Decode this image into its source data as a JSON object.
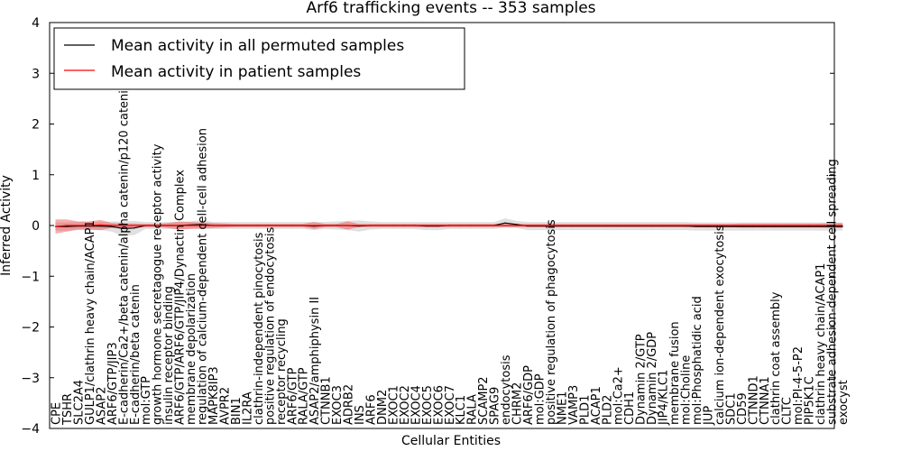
{
  "chart_data": {
    "type": "line",
    "title": "Arf6 trafficking events -- 353 samples",
    "xlabel": "Cellular Entities",
    "ylabel": "Inferred Activity",
    "ylim": [
      -4,
      4
    ],
    "yticks": [
      -4,
      -3,
      -2,
      -1,
      0,
      1,
      2,
      3,
      4
    ],
    "ytick_labels": [
      "−4",
      "−3",
      "−2",
      "−1",
      "0",
      "1",
      "2",
      "3",
      "4"
    ],
    "legend_position": "top-left",
    "legend": [
      {
        "label": "Mean activity in all permuted samples",
        "color": "#000000"
      },
      {
        "label": "Mean activity in patient samples",
        "color": "#ff0000"
      }
    ],
    "categories": [
      "CPE",
      "TSHR",
      "SLC2A4",
      "GULP1/clathrin heavy chain/ACAP1",
      "ASAP2",
      "ARF6/GTP/JIP3",
      "E-cadherin/Ca2+/beta catenin/alpha catenin/p120 catenin",
      "E-cadherin/beta catenin",
      "mol:GTP",
      "growth hormone secretagogue receptor activity",
      "insulin receptor binding",
      "ARF6/GTP/ARF6/GTP/JIP4/Dynactin Complex",
      "membrane depolarization",
      "regulation of calcium-dependent cell-cell adhesion",
      "MAPK8IP3",
      "AVPR2",
      "BIN1",
      "IL2RA",
      "clathrin-independent pinocytosis",
      "positive regulation of endocytosis",
      "receptor recycling",
      "ARF6/GTP",
      "RALA/GTP",
      "ASAP2/amphiphysin II",
      "CTNNB1",
      "EXOC3",
      "ADRB2",
      "INS",
      "ARF6",
      "DNM2",
      "EXOC1",
      "EXOC2",
      "EXOC4",
      "EXOC5",
      "EXOC6",
      "EXOC7",
      "KLC1",
      "RALA",
      "SCAMP2",
      "SPAG9",
      "endocytosis",
      "CHRM2",
      "ARF6/GDP",
      "mol:GDP",
      "positive regulation of phagocytosis",
      "NME1",
      "VAMP3",
      "PLD1",
      "ACAP1",
      "PLD2",
      "mol:Ca2+",
      "CDH1",
      "Dynamin 2/GTP",
      "Dynamin 2/GDP",
      "JIP4/KLC1",
      "membrane fusion",
      "mol:Choline",
      "mol:Phosphatidic acid",
      "JUP",
      "calcium ion-dependent exocytosis",
      "SDC1",
      "CD59",
      "CTNND1",
      "CTNNA1",
      "clathrin coat assembly",
      "CLTC",
      "mol:PI-4-5-P2",
      "PIP5K1C",
      "clathrin heavy chain/ACAP1",
      "substrate adhesion-dependent cell spreading",
      "exocyst"
    ],
    "series": [
      {
        "name": "Mean activity in all permuted samples",
        "color": "#000000",
        "values": [
          -0.02,
          -0.02,
          -0.01,
          -0.01,
          -0.01,
          -0.02,
          -0.06,
          -0.05,
          0.0,
          0.0,
          0.0,
          0.0,
          0.01,
          0.02,
          0.0,
          0.0,
          0.0,
          0.0,
          0.0,
          0.0,
          0.0,
          0.0,
          0.0,
          -0.01,
          0.0,
          0.0,
          0.0,
          -0.01,
          0.0,
          0.0,
          0.0,
          0.0,
          0.0,
          -0.01,
          -0.01,
          0.0,
          0.0,
          0.0,
          0.0,
          0.0,
          0.05,
          0.02,
          -0.01,
          -0.01,
          -0.01,
          -0.01,
          -0.01,
          -0.01,
          -0.01,
          -0.01,
          -0.01,
          -0.01,
          -0.01,
          -0.01,
          -0.01,
          -0.01,
          -0.01,
          -0.02,
          -0.02,
          -0.02,
          -0.02,
          -0.02,
          -0.02,
          -0.02,
          -0.02,
          -0.02,
          -0.02,
          -0.02,
          -0.02,
          -0.02,
          -0.02
        ],
        "spread": [
          0.08,
          0.08,
          0.08,
          0.08,
          0.08,
          0.1,
          0.14,
          0.14,
          0.07,
          0.07,
          0.07,
          0.07,
          0.07,
          0.09,
          0.07,
          0.07,
          0.07,
          0.07,
          0.07,
          0.07,
          0.07,
          0.07,
          0.07,
          0.08,
          0.07,
          0.08,
          0.09,
          0.11,
          0.08,
          0.07,
          0.07,
          0.07,
          0.07,
          0.08,
          0.08,
          0.07,
          0.07,
          0.07,
          0.07,
          0.07,
          0.09,
          0.07,
          0.08,
          0.08,
          0.08,
          0.08,
          0.08,
          0.08,
          0.08,
          0.08,
          0.08,
          0.08,
          0.08,
          0.08,
          0.08,
          0.08,
          0.08,
          0.08,
          0.08,
          0.08,
          0.08,
          0.08,
          0.08,
          0.08,
          0.08,
          0.08,
          0.08,
          0.08,
          0.08,
          0.08,
          0.08
        ]
      },
      {
        "name": "Mean activity in patient samples",
        "color": "#ff0000",
        "values": [
          -0.02,
          0.0,
          0.0,
          0.0,
          0.01,
          0.0,
          0.0,
          0.0,
          0.0,
          0.0,
          0.0,
          0.0,
          0.0,
          0.0,
          0.0,
          0.0,
          0.0,
          0.0,
          0.0,
          0.0,
          0.0,
          0.0,
          0.0,
          0.0,
          0.0,
          0.0,
          0.0,
          0.0,
          0.0,
          0.0,
          0.0,
          0.0,
          0.0,
          0.0,
          0.0,
          0.0,
          0.0,
          0.0,
          0.0,
          0.0,
          0.0,
          0.0,
          0.0,
          0.0,
          0.0,
          0.0,
          0.0,
          0.0,
          0.0,
          0.0,
          0.0,
          0.0,
          0.0,
          0.0,
          0.0,
          0.0,
          0.0,
          0.0,
          0.0,
          0.0,
          0.0,
          0.0,
          0.0,
          0.0,
          0.0,
          0.0,
          0.0,
          0.0,
          0.0,
          0.0,
          0.0
        ],
        "spread": [
          0.14,
          0.12,
          0.08,
          0.08,
          0.1,
          0.05,
          0.04,
          0.04,
          0.03,
          0.03,
          0.05,
          0.08,
          0.07,
          0.06,
          0.05,
          0.04,
          0.03,
          0.03,
          0.03,
          0.03,
          0.03,
          0.03,
          0.03,
          0.07,
          0.03,
          0.03,
          0.08,
          0.03,
          0.03,
          0.03,
          0.03,
          0.03,
          0.03,
          0.03,
          0.03,
          0.03,
          0.03,
          0.03,
          0.03,
          0.03,
          0.03,
          0.03,
          0.03,
          0.03,
          0.03,
          0.03,
          0.03,
          0.03,
          0.03,
          0.03,
          0.03,
          0.03,
          0.03,
          0.03,
          0.03,
          0.03,
          0.03,
          0.03,
          0.03,
          0.03,
          0.03,
          0.04,
          0.04,
          0.04,
          0.04,
          0.04,
          0.04,
          0.04,
          0.04,
          0.05,
          0.05
        ]
      }
    ]
  }
}
